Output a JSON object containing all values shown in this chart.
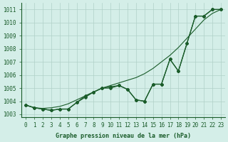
{
  "title": "Graphe pression niveau de la mer (hPa)",
  "x_labels": [
    "0",
    "1",
    "2",
    "3",
    "4",
    "5",
    "6",
    "7",
    "8",
    "9",
    "10",
    "11",
    "12",
    "13",
    "14",
    "15",
    "16",
    "17",
    "18",
    "19",
    "20",
    "21",
    "22",
    "23"
  ],
  "ylim": [
    1002.8,
    1011.5
  ],
  "yticks": [
    1003,
    1004,
    1005,
    1006,
    1007,
    1008,
    1009,
    1010,
    1011
  ],
  "xlim": [
    -0.5,
    23.5
  ],
  "background_color": "#d4eee8",
  "grid_color": "#b0d0c8",
  "line_color": "#1a5c2a",
  "series1": [
    1003.7,
    1003.5,
    1003.4,
    1003.3,
    1003.4,
    1003.4,
    1003.9,
    1004.4,
    1004.7,
    1005.0,
    1005.0,
    1005.2,
    1004.9,
    1004.1,
    1004.0,
    1005.3,
    1005.3,
    1007.2,
    1006.3,
    1008.4,
    1010.5,
    1010.5,
    1011.0,
    1011.0
  ],
  "series2": [
    1003.7,
    1003.5,
    1003.4,
    1003.3,
    1003.4,
    1003.4,
    1003.9,
    1004.3,
    1004.7,
    1005.0,
    1005.1,
    1005.2,
    1004.9,
    1004.1,
    1004.0,
    1005.3,
    1005.3,
    1007.2,
    1006.3,
    1008.4,
    1010.5,
    1010.5,
    1011.0,
    1011.0
  ],
  "series_smooth": [
    1003.7,
    1003.5,
    1003.45,
    1003.5,
    1003.6,
    1003.8,
    1004.1,
    1004.4,
    1004.7,
    1005.0,
    1005.2,
    1005.4,
    1005.6,
    1005.8,
    1006.1,
    1006.5,
    1007.0,
    1007.5,
    1008.1,
    1008.8,
    1009.5,
    1010.2,
    1010.7,
    1011.0
  ]
}
